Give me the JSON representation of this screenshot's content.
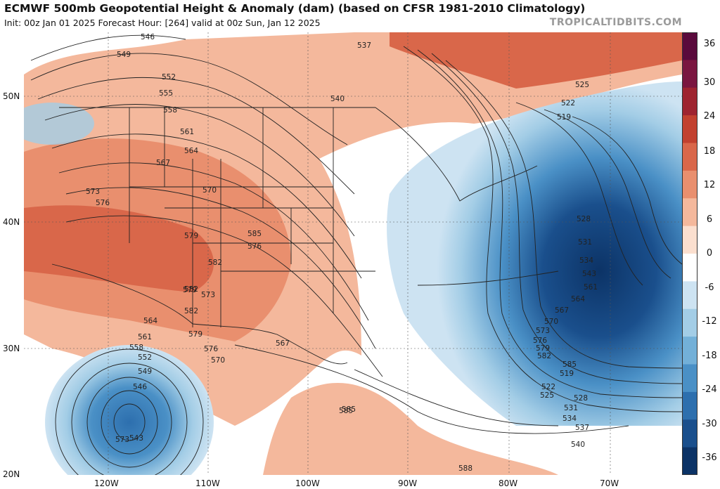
{
  "header": {
    "title": "ECMWF 500mb Geopotential Height & Anomaly (dam) (based on CFSR 1981-2010 Climatology)",
    "subtitle": "Init: 00z Jan 01 2025   Forecast Hour: [264]   valid at 00z Sun, Jan 12 2025",
    "credit": "TROPICALTIDBITS.COM"
  },
  "colorbar": {
    "labels": [
      "36",
      "30",
      "24",
      "18",
      "12",
      "6",
      "0",
      "-6",
      "-12",
      "-18",
      "-24",
      "-30",
      "-36"
    ],
    "colors": [
      "#5a0a3c",
      "#7a1640",
      "#9e2430",
      "#c2412f",
      "#d9674a",
      "#e98f6e",
      "#f4b89c",
      "#fbdfcf",
      "#ffffff",
      "#cde3f2",
      "#a3cde6",
      "#73b0d8",
      "#4a90c6",
      "#2d6fae",
      "#1a4f8c",
      "#0c3366"
    ]
  },
  "axes": {
    "lat_labels": [
      "50N",
      "40N",
      "30N",
      "20N"
    ],
    "lon_labels": [
      "120W",
      "110W",
      "100W",
      "90W",
      "80W",
      "70W"
    ]
  },
  "contours": [
    "546",
    "549",
    "552",
    "555",
    "558",
    "561",
    "564",
    "567",
    "570",
    "573",
    "576",
    "579",
    "582",
    "585",
    "588",
    "537",
    "540",
    "525",
    "522",
    "519",
    "528",
    "531",
    "534",
    "543",
    "561",
    "564",
    "567",
    "570",
    "573",
    "576",
    "579",
    "582",
    "585",
    "519",
    "522",
    "525",
    "528",
    "531",
    "534",
    "537",
    "540",
    "543",
    "546",
    "549",
    "552",
    "558",
    "561",
    "564",
    "567",
    "570",
    "573",
    "576",
    "579",
    "582",
    "585",
    "573",
    "576",
    "579",
    "582",
    "585",
    "588"
  ]
}
